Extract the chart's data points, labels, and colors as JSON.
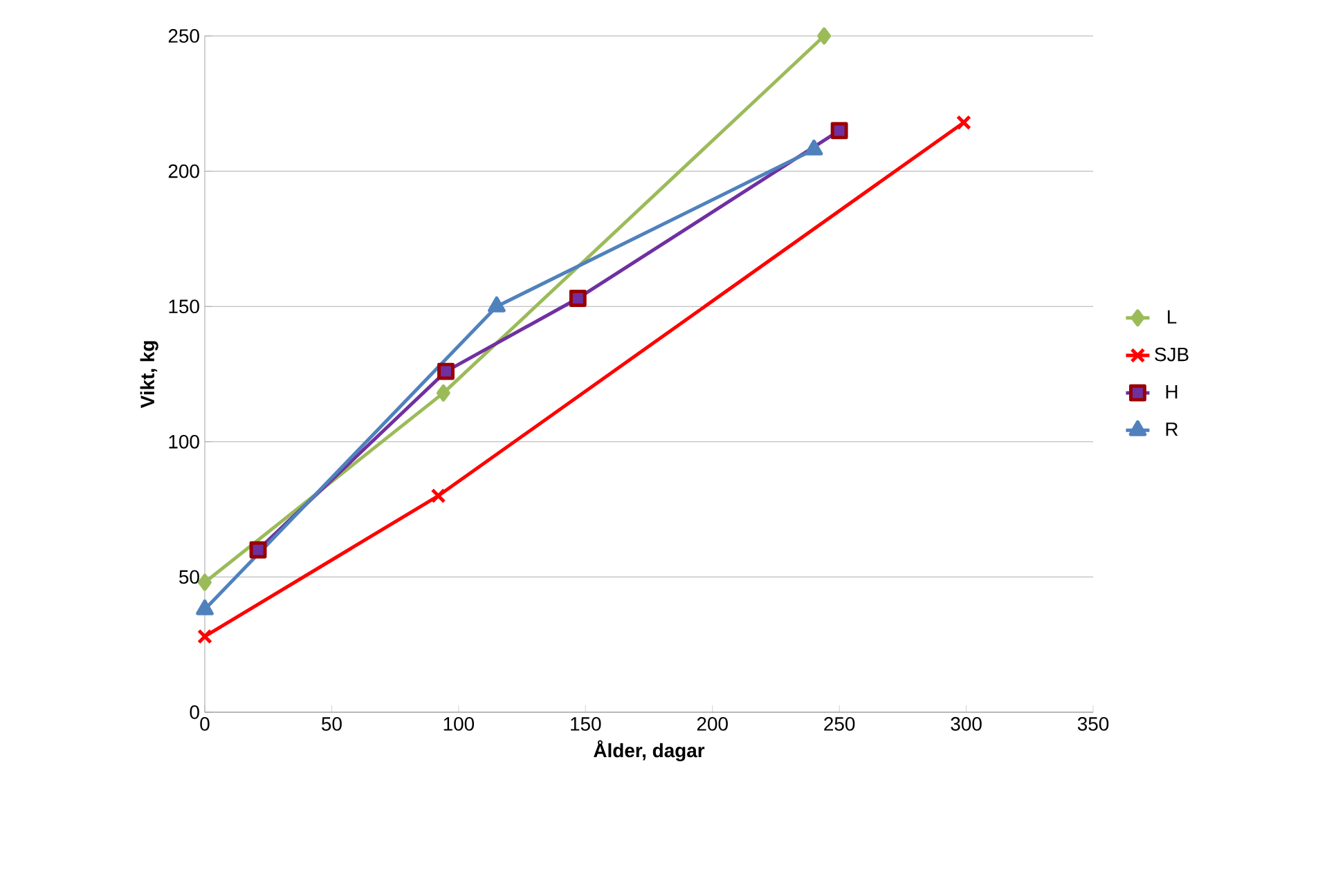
{
  "chart_data": {
    "type": "line",
    "xlabel": "Ålder, dagar",
    "ylabel": "Vikt, kg",
    "xlim": [
      0,
      350
    ],
    "ylim": [
      0,
      250
    ],
    "xticks": [
      0,
      50,
      100,
      150,
      200,
      250,
      300,
      350
    ],
    "yticks": [
      0,
      50,
      100,
      150,
      200,
      250
    ],
    "grid": "y",
    "legend": "right",
    "series": [
      {
        "name": "L",
        "color": "#9bbb59",
        "marker": "diamond",
        "x": [
          0,
          94,
          244
        ],
        "values": [
          48,
          118,
          250
        ]
      },
      {
        "name": "SJB",
        "color": "#ff0000",
        "marker": "cross",
        "x": [
          0,
          92,
          299
        ],
        "values": [
          28,
          80,
          218
        ]
      },
      {
        "name": "H",
        "color": "#7030a0",
        "marker": "square",
        "x": [
          21,
          95,
          147,
          250
        ],
        "values": [
          60,
          126,
          153,
          215
        ]
      },
      {
        "name": "R",
        "color": "#4f81bd",
        "marker": "triangle",
        "x": [
          0,
          115,
          240
        ],
        "values": [
          38,
          150,
          208
        ]
      }
    ]
  }
}
